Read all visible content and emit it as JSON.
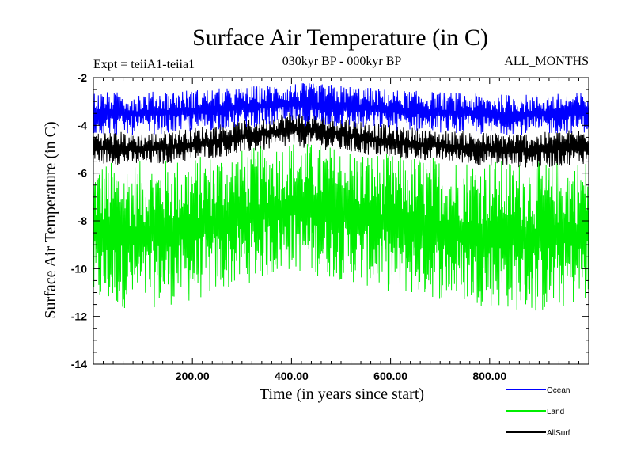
{
  "chart_data": {
    "type": "line",
    "title": "Surface Air Temperature (in C)",
    "subtitle": "030kyr BP - 000kyr BP",
    "experiment_label": "Expt = teiiA1-teiia1",
    "months_label": "ALL_MONTHS",
    "xlabel": "Time (in years since start)",
    "ylabel": "Surface Air Temperature (in C)",
    "xlim": [
      0,
      1000
    ],
    "ylim": [
      -14,
      -2
    ],
    "x_ticks": [
      200,
      400,
      600,
      800
    ],
    "x_tick_labels": [
      "200.00",
      "400.00",
      "600.00",
      "800.00"
    ],
    "y_ticks": [
      -2,
      -4,
      -6,
      -8,
      -10,
      -12,
      -14
    ],
    "y_tick_labels": [
      "-2",
      "-4",
      "-6",
      "-8",
      "-10",
      "-12",
      "-14"
    ],
    "grid": false,
    "legend_position": "bottom-right, below plot",
    "series": [
      {
        "name": "Ocean",
        "color": "#0000ff",
        "envelope_x": [
          0,
          100,
          200,
          300,
          400,
          500,
          600,
          700,
          800,
          900,
          1000
        ],
        "envelope_min": [
          -4.4,
          -4.4,
          -4.3,
          -4.1,
          -4.0,
          -4.1,
          -4.2,
          -4.3,
          -4.4,
          -4.4,
          -4.3
        ],
        "envelope_max": [
          -2.6,
          -2.6,
          -2.5,
          -2.4,
          -2.2,
          -2.3,
          -2.5,
          -2.6,
          -2.7,
          -2.7,
          -2.6
        ]
      },
      {
        "name": "Land",
        "color": "#00ee00",
        "envelope_x": [
          0,
          100,
          200,
          300,
          400,
          500,
          600,
          700,
          800,
          900,
          1000
        ],
        "envelope_min": [
          -11.6,
          -11.7,
          -11.4,
          -10.7,
          -10.1,
          -10.5,
          -11.0,
          -11.3,
          -11.6,
          -11.9,
          -11.4
        ],
        "envelope_max": [
          -5.5,
          -5.5,
          -5.3,
          -5.0,
          -4.6,
          -4.9,
          -5.2,
          -5.3,
          -5.4,
          -5.5,
          -5.4
        ]
      },
      {
        "name": "AllSurf",
        "color": "#000000",
        "envelope_x": [
          0,
          100,
          200,
          300,
          400,
          500,
          600,
          700,
          800,
          900,
          1000
        ],
        "envelope_min": [
          -5.6,
          -5.7,
          -5.5,
          -5.2,
          -4.9,
          -5.1,
          -5.4,
          -5.5,
          -5.7,
          -5.8,
          -5.6
        ],
        "envelope_max": [
          -4.2,
          -4.3,
          -4.1,
          -3.8,
          -3.4,
          -3.6,
          -4.0,
          -4.2,
          -4.3,
          -4.3,
          -4.1
        ]
      }
    ]
  }
}
